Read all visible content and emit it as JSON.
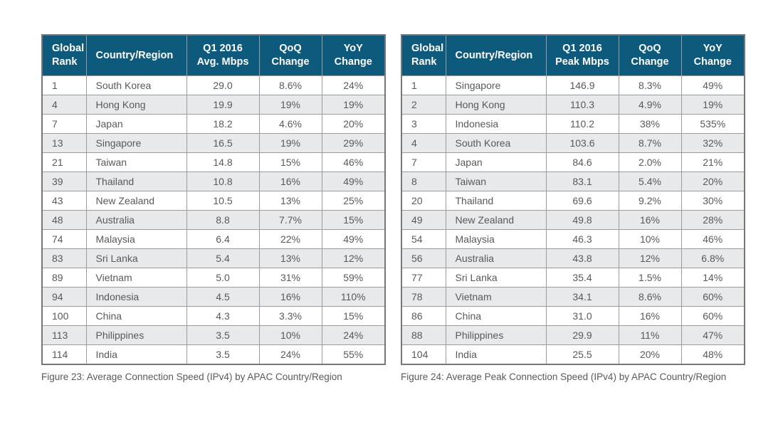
{
  "colors": {
    "header_bg": "#0d5a7d",
    "header_text": "#ffffff",
    "body_text": "#58595b",
    "row_stripe": "#e8e9ea",
    "border": "#9b9c9e",
    "outer_border": "#76777a"
  },
  "tables": [
    {
      "caption": "Figure 23: Average Connection Speed (IPv4) by APAC Country/Region",
      "columns": [
        {
          "label": "Global\nRank"
        },
        {
          "label": "Country/Region"
        },
        {
          "label": "Q1 2016\nAvg. Mbps"
        },
        {
          "label": "QoQ\nChange"
        },
        {
          "label": "YoY\nChange"
        }
      ],
      "col_names": [
        "global-rank-cell",
        "country-region-cell",
        "avg-mbps-cell",
        "qoq-change-cell",
        "yoy-change-cell"
      ],
      "rows": [
        [
          "1",
          "South Korea",
          "29.0",
          "8.6%",
          "24%"
        ],
        [
          "4",
          "Hong Kong",
          "19.9",
          "19%",
          "19%"
        ],
        [
          "7",
          "Japan",
          "18.2",
          "4.6%",
          "20%"
        ],
        [
          "13",
          "Singapore",
          "16.5",
          "19%",
          "29%"
        ],
        [
          "21",
          "Taiwan",
          "14.8",
          "15%",
          "46%"
        ],
        [
          "39",
          "Thailand",
          "10.8",
          "16%",
          "49%"
        ],
        [
          "43",
          "New Zealand",
          "10.5",
          "13%",
          "25%"
        ],
        [
          "48",
          "Australia",
          "8.8",
          "7.7%",
          "15%"
        ],
        [
          "74",
          "Malaysia",
          "6.4",
          "22%",
          "49%"
        ],
        [
          "83",
          "Sri Lanka",
          "5.4",
          "13%",
          "12%"
        ],
        [
          "89",
          "Vietnam",
          "5.0",
          "31%",
          "59%"
        ],
        [
          "94",
          "Indonesia",
          "4.5",
          "16%",
          "110%"
        ],
        [
          "100",
          "China",
          "4.3",
          "3.3%",
          "15%"
        ],
        [
          "113",
          "Philippines",
          "3.5",
          "10%",
          "24%"
        ],
        [
          "114",
          "India",
          "3.5",
          "24%",
          "55%"
        ]
      ]
    },
    {
      "caption": "Figure 24: Average Peak Connection Speed (IPv4) by APAC Country/Region",
      "columns": [
        {
          "label": "Global\nRank"
        },
        {
          "label": "Country/Region"
        },
        {
          "label": "Q1 2016\nPeak Mbps"
        },
        {
          "label": "QoQ\nChange"
        },
        {
          "label": "YoY\nChange"
        }
      ],
      "col_names": [
        "global-rank-cell",
        "country-region-cell",
        "peak-mbps-cell",
        "qoq-change-cell",
        "yoy-change-cell"
      ],
      "rows": [
        [
          "1",
          "Singapore",
          "146.9",
          "8.3%",
          "49%"
        ],
        [
          "2",
          "Hong Kong",
          "110.3",
          "4.9%",
          "19%"
        ],
        [
          "3",
          "Indonesia",
          "110.2",
          "38%",
          "535%"
        ],
        [
          "4",
          "South Korea",
          "103.6",
          "8.7%",
          "32%"
        ],
        [
          "7",
          "Japan",
          "84.6",
          "2.0%",
          "21%"
        ],
        [
          "8",
          "Taiwan",
          "83.1",
          "5.4%",
          "20%"
        ],
        [
          "20",
          "Thailand",
          "69.6",
          "9.2%",
          "30%"
        ],
        [
          "49",
          "New Zealand",
          "49.8",
          "16%",
          "28%"
        ],
        [
          "54",
          "Malaysia",
          "46.3",
          "10%",
          "46%"
        ],
        [
          "56",
          "Australia",
          "43.8",
          "12%",
          "6.8%"
        ],
        [
          "77",
          "Sri Lanka",
          "35.4",
          "1.5%",
          "14%"
        ],
        [
          "78",
          "Vietnam",
          "34.1",
          "8.6%",
          "60%"
        ],
        [
          "86",
          "China",
          "31.0",
          "16%",
          "60%"
        ],
        [
          "88",
          "Philippines",
          "29.9",
          "11%",
          "47%"
        ],
        [
          "104",
          "India",
          "25.5",
          "20%",
          "48%"
        ]
      ]
    }
  ]
}
